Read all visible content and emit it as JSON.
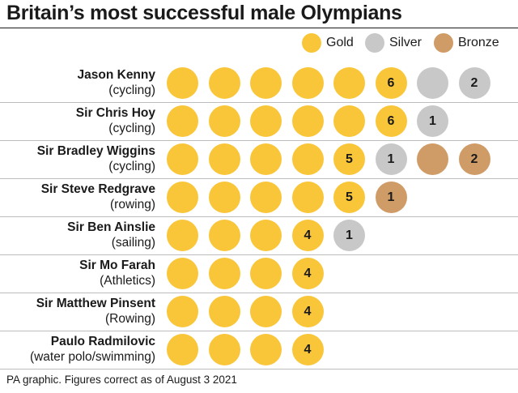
{
  "chart_data": {
    "type": "table",
    "title": "Britain’s most successful male Olympians",
    "legend": [
      {
        "name": "Gold",
        "color": "#f9c639"
      },
      {
        "name": "Silver",
        "color": "#c8c8c8"
      },
      {
        "name": "Bronze",
        "color": "#cf9b66"
      }
    ],
    "legend_placement": "top-right",
    "rows": [
      {
        "name": "Jason Kenny",
        "event": "(cycling)",
        "gold": 6,
        "silver": 2,
        "bronze": 0
      },
      {
        "name": "Sir Chris Hoy",
        "event": "(cycling)",
        "gold": 6,
        "silver": 1,
        "bronze": 0
      },
      {
        "name": "Sir Bradley Wiggins",
        "event": "(cycling)",
        "gold": 5,
        "silver": 1,
        "bronze": 2
      },
      {
        "name": "Sir Steve Redgrave",
        "event": "(rowing)",
        "gold": 5,
        "silver": 0,
        "bronze": 1
      },
      {
        "name": "Sir Ben Ainslie",
        "event": "(sailing)",
        "gold": 4,
        "silver": 1,
        "bronze": 0
      },
      {
        "name": "Sir Mo Farah",
        "event": "(Athletics)",
        "gold": 4,
        "silver": 0,
        "bronze": 0
      },
      {
        "name": "Sir Matthew Pinsent",
        "event": "(Rowing)",
        "gold": 4,
        "silver": 0,
        "bronze": 0
      },
      {
        "name": "Paulo Radmilovic",
        "event": "(water polo/swimming)",
        "gold": 4,
        "silver": 0,
        "bronze": 0
      }
    ]
  },
  "footer": "PA graphic. Figures correct as of August 3 2021"
}
